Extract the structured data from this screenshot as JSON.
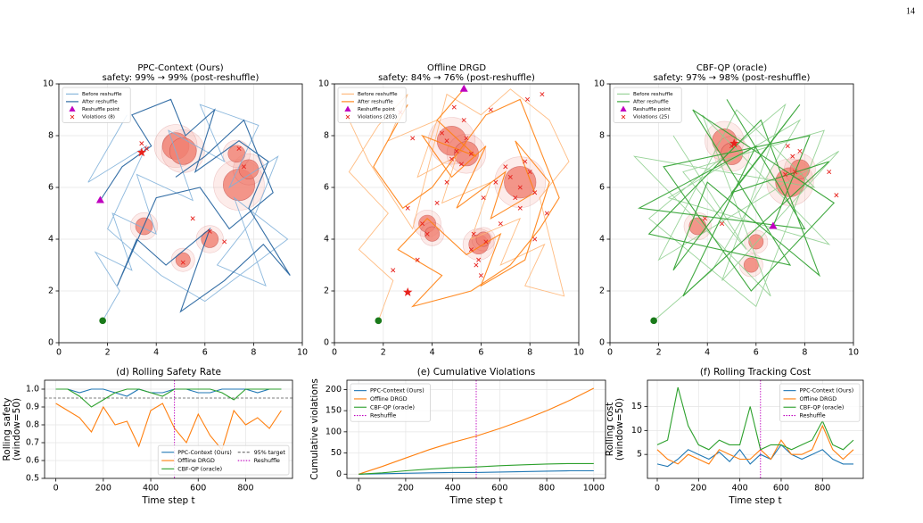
{
  "page_number": "14",
  "chart_data": [
    {
      "type": "trajectory",
      "title": "PPC-Context (Ours)",
      "subtitle": "safety: 99% → 99% (post-reshuffle)",
      "xlim": [
        0,
        10
      ],
      "ylim": [
        0,
        10
      ],
      "xticks": [
        0,
        2,
        4,
        6,
        8,
        10
      ],
      "yticks": [
        0,
        2,
        4,
        6,
        8,
        10
      ],
      "grid": true,
      "legend": "upper left",
      "obstacles": {
        "color": "#f08070",
        "x": [
          4.8,
          5.1,
          7.4,
          7.8,
          3.5,
          6.2,
          5.1,
          7.3
        ],
        "y": [
          7.6,
          7.4,
          6.1,
          6.7,
          4.5,
          4.0,
          3.2,
          7.3
        ],
        "r": [
          0.55,
          0.55,
          0.65,
          0.4,
          0.35,
          0.35,
          0.3,
          0.35
        ]
      },
      "start": {
        "color": "#1a7a1a",
        "x": 1.8,
        "y": 0.85
      },
      "goal": {
        "color": "#e8231e",
        "x": 3.4,
        "y": 7.35
      },
      "series": [
        {
          "name": "Before reshuffle",
          "color": "#7fb0d9",
          "x": [
            1.8,
            2.5,
            1.5,
            3.0,
            2.2,
            4.0,
            3.2,
            5.5,
            4.5,
            6.8,
            5.8,
            8.2,
            7.0,
            9.0,
            8.0,
            6.5,
            8.5,
            7.2,
            9.4,
            6.0,
            4.2,
            2.0,
            3.6,
            1.2,
            2.8
          ],
          "y": [
            0.85,
            2.0,
            3.5,
            2.8,
            5.0,
            4.2,
            6.5,
            5.5,
            8.2,
            7.0,
            9.2,
            8.4,
            6.0,
            7.2,
            4.8,
            3.0,
            2.2,
            5.6,
            4.0,
            1.6,
            2.6,
            4.4,
            7.6,
            6.2,
            8.8
          ]
        },
        {
          "name": "After reshuffle",
          "color": "#1f5f9c",
          "x": [
            1.7,
            2.6,
            3.8,
            3.0,
            4.6,
            5.2,
            6.4,
            5.6,
            7.4,
            8.6,
            7.8,
            9.5,
            8.4,
            6.8,
            5.0,
            6.2,
            4.4,
            3.2,
            2.4,
            4.0,
            5.8,
            7.0,
            8.8,
            7.6,
            6.0,
            4.8
          ],
          "y": [
            5.5,
            6.8,
            7.6,
            8.8,
            9.4,
            8.0,
            9.0,
            6.6,
            7.8,
            7.0,
            5.2,
            2.6,
            3.8,
            2.4,
            1.2,
            4.4,
            3.0,
            4.0,
            2.2,
            5.6,
            6.0,
            4.4,
            5.8,
            8.6,
            7.2,
            6.4
          ]
        },
        {
          "name": "Reshuffle point",
          "color": "#bf00bf",
          "marker": "triangle",
          "x": [
            1.7
          ],
          "y": [
            5.5
          ]
        },
        {
          "name": "Violations (8)",
          "color": "#e8231e",
          "marker": "x",
          "x": [
            3.4,
            5.5,
            6.8,
            5.1,
            7.4,
            3.6,
            7.6,
            6.2
          ],
          "y": [
            7.7,
            4.8,
            3.9,
            3.1,
            7.5,
            7.5,
            6.8,
            4.3
          ]
        }
      ]
    },
    {
      "type": "trajectory",
      "title": "Offline DRGD",
      "subtitle": "safety: 84% → 76% (post-reshuffle)",
      "xlim": [
        0,
        10
      ],
      "ylim": [
        0,
        10
      ],
      "xticks": [
        0,
        2,
        4,
        6,
        8,
        10
      ],
      "yticks": [
        0,
        2,
        4,
        6,
        8,
        10
      ],
      "grid": true,
      "legend": "upper left",
      "obstacles": {
        "color": "#f08070",
        "x": [
          4.8,
          5.4,
          7.6,
          3.8,
          5.9,
          6.1,
          4.0
        ],
        "y": [
          7.8,
          7.3,
          6.2,
          4.6,
          3.8,
          4.0,
          4.2
        ],
        "r": [
          0.6,
          0.5,
          0.65,
          0.35,
          0.4,
          0.3,
          0.3
        ]
      },
      "start": {
        "color": "#1a7a1a",
        "x": 1.8,
        "y": 0.85
      },
      "goal": {
        "color": "#e8231e",
        "x": 3.0,
        "y": 1.95
      },
      "series": [
        {
          "name": "Before reshuffle",
          "color": "#ffb574",
          "x": [
            1.8,
            2.4,
            1.0,
            2.2,
            0.6,
            1.8,
            3.0,
            2.2,
            4.2,
            3.4,
            5.0,
            4.4,
            6.4,
            5.6,
            7.6,
            6.8,
            8.6,
            7.8,
            9.4,
            8.4,
            9.6,
            8.8,
            7.2,
            6.0,
            4.6,
            3.2,
            1.4,
            0.4
          ],
          "y": [
            0.85,
            2.4,
            3.6,
            5.0,
            6.6,
            8.4,
            9.6,
            7.8,
            8.6,
            6.4,
            7.2,
            5.4,
            6.2,
            4.0,
            4.8,
            3.0,
            3.8,
            2.2,
            1.8,
            5.6,
            7.0,
            8.6,
            9.8,
            8.8,
            9.6,
            4.4,
            7.0,
            9.0
          ]
        },
        {
          "name": "After reshuffle",
          "color": "#ff7f0e",
          "x": [
            5.3,
            4.2,
            5.8,
            3.6,
            4.8,
            6.2,
            5.0,
            7.0,
            6.4,
            8.2,
            7.4,
            8.8,
            7.8,
            6.0,
            6.8,
            5.4,
            3.8,
            2.6,
            4.4,
            3.2,
            5.6,
            7.2,
            8.4,
            9.2,
            7.6,
            6.2,
            4.0,
            2.8,
            1.6,
            3.0
          ],
          "y": [
            9.8,
            8.6,
            7.2,
            8.0,
            6.4,
            7.6,
            5.2,
            6.6,
            4.8,
            5.8,
            7.8,
            6.2,
            3.2,
            2.2,
            4.2,
            3.4,
            4.8,
            3.6,
            2.6,
            1.4,
            2.0,
            3.0,
            4.4,
            5.6,
            9.4,
            8.8,
            6.0,
            5.2,
            6.8,
            9.2
          ]
        },
        {
          "name": "Reshuffle point",
          "color": "#bf00bf",
          "marker": "triangle",
          "x": [
            5.3
          ],
          "y": [
            9.8
          ]
        },
        {
          "name": "Violations (203)",
          "color": "#e8231e",
          "marker": "x",
          "x": [
            4.6,
            5.0,
            5.4,
            4.8,
            5.2,
            4.4,
            5.6,
            7.2,
            7.6,
            8.0,
            7.4,
            7.8,
            8.2,
            7.0,
            7.6,
            3.6,
            3.8,
            3.4,
            5.6,
            5.9,
            6.2,
            5.7,
            6.0,
            5.8,
            4.2,
            6.8,
            6.6,
            3.2,
            8.5,
            7.9,
            4.9,
            5.3,
            6.4,
            2.7,
            8.2,
            2.4,
            8.7,
            4.6,
            6.1,
            3.0
          ],
          "y": [
            7.8,
            7.4,
            7.9,
            7.1,
            6.9,
            8.1,
            7.3,
            6.4,
            6.0,
            6.6,
            5.6,
            7.0,
            5.8,
            6.8,
            5.2,
            4.6,
            4.2,
            3.2,
            3.6,
            3.2,
            3.9,
            4.2,
            2.6,
            3.0,
            5.4,
            4.6,
            6.2,
            7.9,
            9.6,
            9.4,
            9.1,
            8.6,
            9.0,
            8.9,
            4.0,
            2.8,
            5.0,
            6.2,
            5.6,
            5.2
          ]
        }
      ]
    },
    {
      "type": "trajectory",
      "title": "CBF-QP (oracle)",
      "subtitle": "safety: 97% → 98% (post-reshuffle)",
      "xlim": [
        0,
        10
      ],
      "ylim": [
        0,
        10
      ],
      "xticks": [
        0,
        2,
        4,
        6,
        8,
        10
      ],
      "yticks": [
        0,
        2,
        4,
        6,
        8,
        10
      ],
      "grid": true,
      "legend": "upper left",
      "obstacles": {
        "color": "#f08070",
        "x": [
          4.7,
          7.4,
          7.8,
          3.6,
          6.0,
          5.8,
          5.0
        ],
        "y": [
          7.8,
          6.2,
          6.7,
          4.5,
          3.9,
          3.0,
          7.3
        ],
        "r": [
          0.5,
          0.6,
          0.4,
          0.35,
          0.3,
          0.3,
          0.45
        ]
      },
      "start": {
        "color": "#1a7a1a",
        "x": 1.8,
        "y": 0.85
      },
      "goal": {
        "color": "#e8231e",
        "x": 5.1,
        "y": 7.7
      },
      "series": [
        {
          "name": "Before reshuffle",
          "color": "#8fcf8f",
          "x": [
            1.8,
            4.2,
            7.8,
            2.4,
            9.0,
            3.8,
            6.6,
            1.0,
            8.4,
            5.2,
            2.0,
            9.4,
            4.6,
            7.2,
            1.6,
            6.0,
            8.8,
            3.0,
            5.6,
            2.6
          ],
          "y": [
            0.85,
            2.8,
            8.6,
            5.6,
            3.8,
            8.8,
            1.8,
            7.2,
            6.0,
            9.0,
            3.2,
            7.4,
            2.4,
            9.2,
            4.8,
            1.4,
            8.2,
            6.6,
            3.6,
            8.0
          ]
        },
        {
          "name": "After reshuffle",
          "color": "#2ca02c",
          "x": [
            6.7,
            8.2,
            2.2,
            5.8,
            9.2,
            3.4,
            7.4,
            1.6,
            6.2,
            8.6,
            4.0,
            2.6,
            7.8,
            5.0,
            9.0,
            3.0,
            6.0,
            1.2,
            8.0,
            4.8
          ],
          "y": [
            4.5,
            8.0,
            6.8,
            2.0,
            5.4,
            9.0,
            3.0,
            4.2,
            8.6,
            2.6,
            6.2,
            2.8,
            9.2,
            5.8,
            7.0,
            1.8,
            7.6,
            5.2,
            4.4,
            9.4
          ]
        },
        {
          "name": "Reshuffle point",
          "color": "#bf00bf",
          "marker": "triangle",
          "x": [
            6.7
          ],
          "y": [
            4.5
          ]
        },
        {
          "name": "Violations (25)",
          "color": "#e8231e",
          "marker": "x",
          "x": [
            5.0,
            7.3,
            7.5,
            7.8,
            7.6,
            3.9,
            4.6,
            9.0,
            9.3,
            7.2
          ],
          "y": [
            7.6,
            7.6,
            7.2,
            7.4,
            6.6,
            4.8,
            4.6,
            6.6,
            5.7,
            6.5
          ]
        }
      ]
    },
    {
      "type": "line",
      "title": "(d) Rolling Safety Rate",
      "xlabel": "Time step t",
      "ylabel": [
        "Rolling safety",
        "(window=50)"
      ],
      "xlim": [
        -47.5,
        997.5
      ],
      "ylim": [
        0.5,
        1.05
      ],
      "xticks": [
        0,
        200,
        400,
        600,
        800
      ],
      "yticks": [
        0.5,
        0.6,
        0.7,
        0.8,
        0.9,
        {
          "value": 1,
          "label": "1.0"
        }
      ],
      "grid": true,
      "legend": "lower right",
      "legend_columns": 2,
      "x": [
        0,
        50,
        100,
        150,
        200,
        250,
        300,
        350,
        400,
        450,
        500,
        550,
        600,
        650,
        700,
        750,
        800,
        850,
        900,
        950
      ],
      "series": [
        {
          "name": "PPC-Context (Ours)",
          "color": "#1f77b4",
          "values": [
            1.0,
            1.0,
            0.98,
            1.0,
            1.0,
            0.98,
            0.96,
            1.0,
            0.98,
            0.98,
            1.0,
            1.0,
            0.98,
            0.98,
            1.0,
            1.0,
            1.0,
            0.98,
            1.0,
            1.0
          ]
        },
        {
          "name": "Offline DRGD",
          "color": "#ff7f0e",
          "values": [
            0.92,
            0.88,
            0.84,
            0.76,
            0.9,
            0.8,
            0.82,
            0.68,
            0.88,
            0.92,
            0.78,
            0.7,
            0.86,
            0.74,
            0.66,
            0.88,
            0.8,
            0.84,
            0.78,
            0.88
          ]
        },
        {
          "name": "CBF-QP (oracle)",
          "color": "#2ca02c",
          "values": [
            1.0,
            1.0,
            0.96,
            0.9,
            0.94,
            0.98,
            1.0,
            1.0,
            0.98,
            0.96,
            1.0,
            1.0,
            1.0,
            1.0,
            0.98,
            0.94,
            1.0,
            1.0,
            1.0,
            1.0
          ]
        }
      ],
      "hline": {
        "name": "95% target",
        "value": 0.95,
        "color": "#555555"
      },
      "vline": {
        "name": "Reshuffle",
        "value": 500,
        "color": "#bf00bf"
      }
    },
    {
      "type": "line",
      "title": "(e) Cumulative Violations",
      "xlabel": "Time step t",
      "ylabel": [
        "Cumulative violations"
      ],
      "xlim": [
        -50,
        1050
      ],
      "ylim": [
        -10,
        222
      ],
      "xticks": [
        0,
        200,
        400,
        600,
        800,
        1000
      ],
      "yticks": [
        0,
        50,
        100,
        150,
        200
      ],
      "grid": true,
      "legend": "upper left",
      "legend_columns": 1,
      "x": [
        0,
        100,
        200,
        300,
        400,
        500,
        600,
        700,
        800,
        900,
        1000
      ],
      "series": [
        {
          "name": "PPC-Context (Ours)",
          "color": "#1f77b4",
          "values": [
            0,
            1,
            2,
            3,
            4,
            4,
            5,
            6,
            7,
            8,
            8
          ]
        },
        {
          "name": "Offline DRGD",
          "color": "#ff7f0e",
          "values": [
            0,
            18,
            38,
            58,
            75,
            90,
            108,
            128,
            150,
            175,
            203
          ]
        },
        {
          "name": "CBF-QP (oracle)",
          "color": "#2ca02c",
          "values": [
            0,
            3,
            8,
            12,
            15,
            17,
            20,
            22,
            24,
            25,
            25
          ]
        }
      ],
      "vline": {
        "name": "Reshuffle",
        "value": 500,
        "color": "#bf00bf"
      }
    },
    {
      "type": "line",
      "title": "(f) Rolling Tracking Cost",
      "xlabel": "Time step t",
      "ylabel": [
        "Rolling cost",
        "(window=50)"
      ],
      "xlim": [
        -47.5,
        997.5
      ],
      "ylim": [
        0,
        20.5
      ],
      "xticks": [
        0,
        200,
        400,
        600,
        800
      ],
      "yticks": [
        5,
        10,
        15
      ],
      "grid": true,
      "legend": "upper right",
      "legend_columns": 1,
      "x": [
        0,
        50,
        100,
        150,
        200,
        250,
        300,
        350,
        400,
        450,
        500,
        550,
        600,
        650,
        700,
        750,
        800,
        850,
        900,
        950
      ],
      "series": [
        {
          "name": "PPC-Context (Ours)",
          "color": "#1f77b4",
          "values": [
            3,
            2.5,
            4,
            6,
            5,
            4,
            5.5,
            3.5,
            6,
            3,
            5,
            4,
            7,
            5,
            4,
            5,
            6,
            4,
            3,
            3
          ]
        },
        {
          "name": "Offline DRGD",
          "color": "#ff7f0e",
          "values": [
            6,
            4,
            3,
            5,
            4,
            3,
            6,
            5,
            4,
            4,
            6,
            4,
            8,
            5,
            5,
            6,
            11,
            6,
            4,
            6
          ]
        },
        {
          "name": "CBF-QP (oracle)",
          "color": "#2ca02c",
          "values": [
            7,
            8,
            19,
            11,
            7,
            6,
            8,
            7,
            7,
            15,
            6,
            7,
            7,
            6,
            7,
            8,
            12,
            7,
            6,
            8
          ]
        }
      ],
      "vline": {
        "name": "Reshuffle",
        "value": 500,
        "color": "#bf00bf"
      }
    }
  ]
}
